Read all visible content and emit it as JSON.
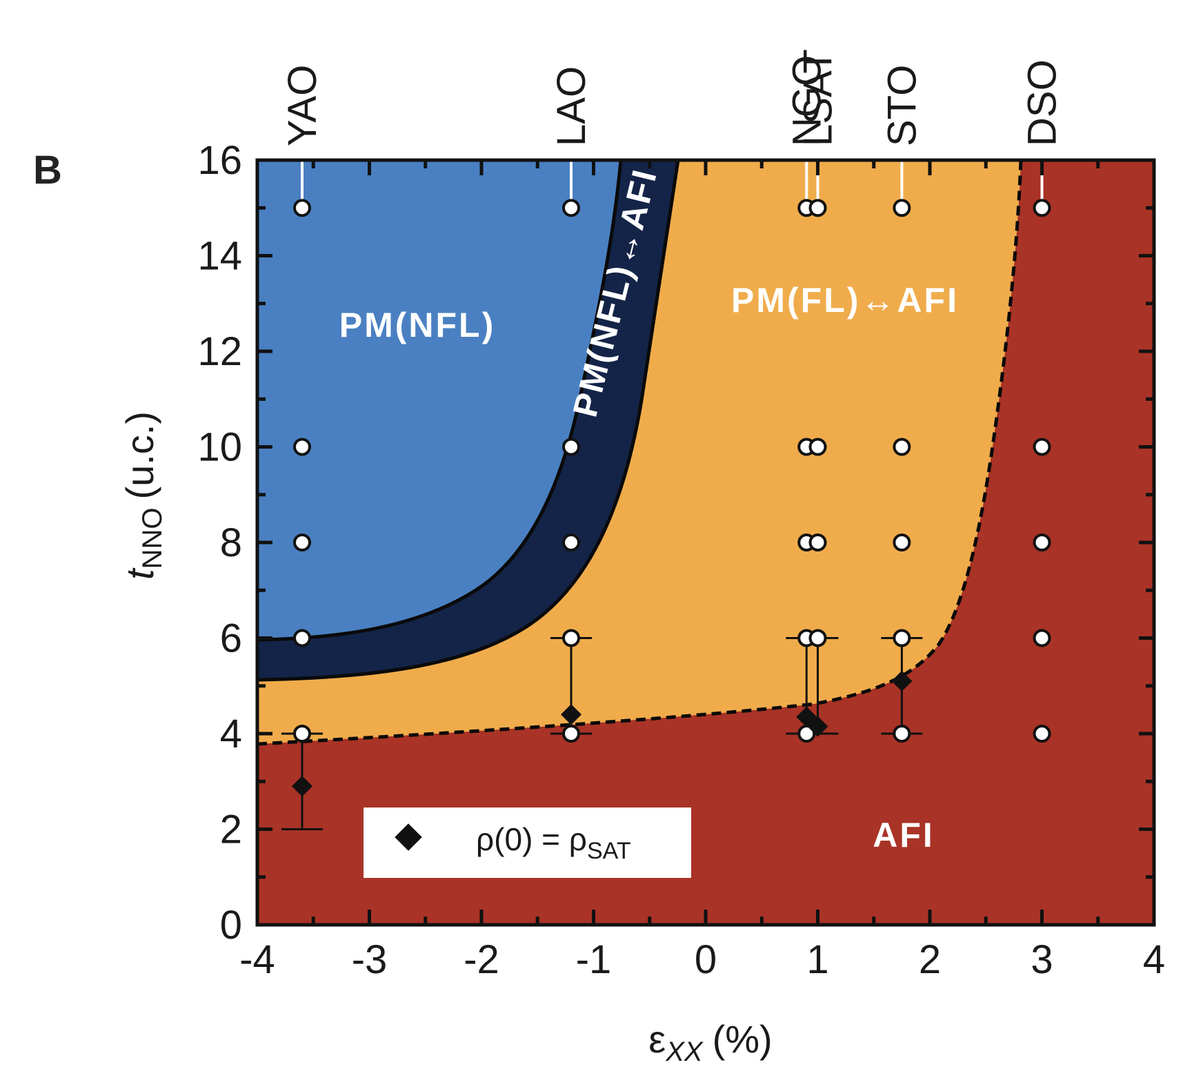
{
  "panel_label": "B",
  "chart_data": {
    "type": "scatter",
    "xlabel": "ε",
    "xlabel_sub": "XX",
    "xlabel_unit": "(%)",
    "ylabel": "t",
    "ylabel_sub": "NNO",
    "ylabel_unit": "(u.c.)",
    "xlim": [
      -4,
      4
    ],
    "ylim": [
      0,
      16
    ],
    "x_ticks": [
      -4,
      -3,
      -2,
      -1,
      0,
      1,
      2,
      3,
      4
    ],
    "x_tick_labels": [
      "-4",
      "-3",
      "-2",
      "-1",
      "0",
      "1",
      "2",
      "3",
      "4"
    ],
    "y_ticks": [
      0,
      2,
      4,
      6,
      8,
      10,
      12,
      14,
      16
    ],
    "y_tick_labels": [
      "0",
      "2",
      "4",
      "6",
      "8",
      "10",
      "12",
      "14",
      "16"
    ],
    "grid": false,
    "substrates": [
      {
        "name": "YAO",
        "x": -3.6
      },
      {
        "name": "LAO",
        "x": -1.2
      },
      {
        "name": "NGO",
        "x": 0.9
      },
      {
        "name": "LSAT",
        "x": 1.0
      },
      {
        "name": "STO",
        "x": 1.75
      },
      {
        "name": "DSO",
        "x": 3.0
      }
    ],
    "regions": [
      {
        "label": "PM(NFL)",
        "color": "#4a80c2"
      },
      {
        "label": "PM(NFL)↔AFI",
        "color": "#142448"
      },
      {
        "label": "PM(FL)↔AFI",
        "color": "#f0ac4b"
      },
      {
        "label": "AFI",
        "color": "#a93326"
      }
    ],
    "measured_points": [
      {
        "x": -3.6,
        "y": 15
      },
      {
        "x": -3.6,
        "y": 10
      },
      {
        "x": -3.6,
        "y": 8
      },
      {
        "x": -3.6,
        "y": 6
      },
      {
        "x": -3.6,
        "y": 4
      },
      {
        "x": -1.2,
        "y": 15
      },
      {
        "x": -1.2,
        "y": 10
      },
      {
        "x": -1.2,
        "y": 8
      },
      {
        "x": -1.2,
        "y": 6
      },
      {
        "x": -1.2,
        "y": 4
      },
      {
        "x": 0.9,
        "y": 15
      },
      {
        "x": 0.9,
        "y": 10
      },
      {
        "x": 0.9,
        "y": 8
      },
      {
        "x": 0.9,
        "y": 6
      },
      {
        "x": 0.9,
        "y": 4
      },
      {
        "x": 1.0,
        "y": 15
      },
      {
        "x": 1.0,
        "y": 10
      },
      {
        "x": 1.0,
        "y": 8
      },
      {
        "x": 1.0,
        "y": 6
      },
      {
        "x": 1.75,
        "y": 15
      },
      {
        "x": 1.75,
        "y": 10
      },
      {
        "x": 1.75,
        "y": 8
      },
      {
        "x": 1.75,
        "y": 6
      },
      {
        "x": 1.75,
        "y": 4
      },
      {
        "x": 3.0,
        "y": 15
      },
      {
        "x": 3.0,
        "y": 10
      },
      {
        "x": 3.0,
        "y": 8
      },
      {
        "x": 3.0,
        "y": 6
      },
      {
        "x": 3.0,
        "y": 4
      }
    ],
    "rho_sat_series": {
      "name": "ρ(0) = ρSAT",
      "legend_main": "ρ(0) = ρ",
      "legend_sub": "SAT",
      "points": [
        {
          "x": -3.6,
          "y": 2.9,
          "ylow": 2.0,
          "yhigh": 4.0
        },
        {
          "x": -1.2,
          "y": 4.4,
          "ylow": 4.0,
          "yhigh": 6.0
        },
        {
          "x": 0.9,
          "y": 4.35,
          "ylow": 4.0,
          "yhigh": 6.0
        },
        {
          "x": 1.0,
          "y": 4.15,
          "ylow": 4.0,
          "yhigh": 6.0
        },
        {
          "x": 1.75,
          "y": 5.1,
          "ylow": 4.0,
          "yhigh": 6.0
        }
      ]
    }
  },
  "colors": {
    "axis": "#111111",
    "marker_fill": "#ffffff",
    "marker_stroke": "#111111",
    "diamond": "#111111",
    "legend_bg": "#ffffff"
  }
}
